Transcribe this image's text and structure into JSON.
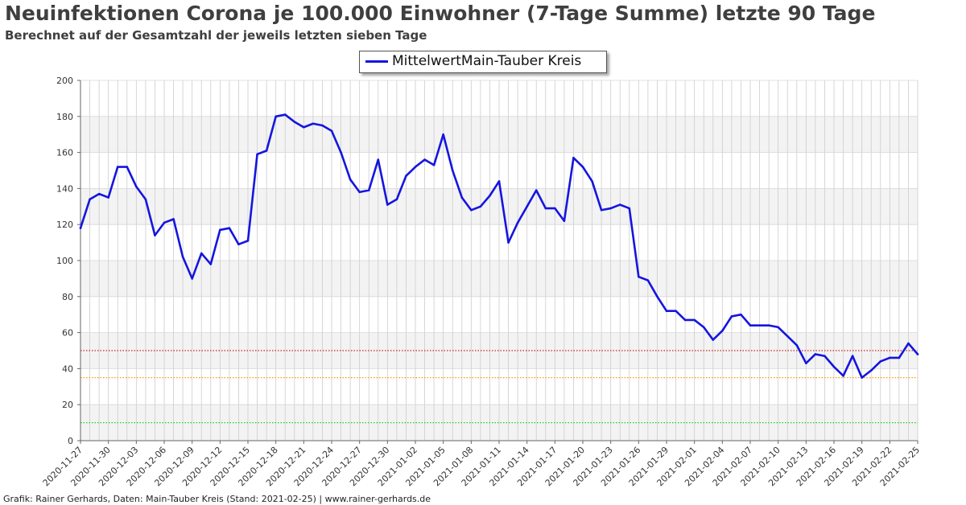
{
  "title": "Neuinfektionen Corona je 100.000 Einwohner (7-Tage Summe) letzte 90 Tage",
  "subtitle": "Berechnet auf der Gesamtzahl der jeweils letzten sieben Tage",
  "footer": "Grafik: Rainer Gerhards, Daten: Main-Tauber Kreis (Stand: 2021-02-25) | www.rainer-gerhards.de",
  "colors": {
    "series": "#1515e0",
    "threshold_50": "#cc2222",
    "threshold_35": "#ff9900",
    "threshold_10": "#22cc22",
    "band": "#f3f3f3",
    "grid": "#cccccc"
  },
  "chart_data": {
    "type": "line",
    "title": "Neuinfektionen Corona je 100.000 Einwohner (7-Tage Summe) letzte 90 Tage",
    "subtitle": "Berechnet auf der Gesamtzahl der jeweils letzten sieben Tage",
    "xlabel": "",
    "ylabel": "",
    "ylim": [
      0,
      200
    ],
    "yticks": [
      0,
      20,
      40,
      60,
      80,
      100,
      120,
      140,
      160,
      180,
      200
    ],
    "x_start": "2020-11-27",
    "x_end": "2021-02-25",
    "xtick_labels": [
      "2020-11-27",
      "2020-11-30",
      "2020-12-03",
      "2020-12-06",
      "2020-12-09",
      "2020-12-12",
      "2020-12-15",
      "2020-12-18",
      "2020-12-21",
      "2020-12-24",
      "2020-12-27",
      "2020-12-30",
      "2021-01-02",
      "2021-01-05",
      "2021-01-08",
      "2021-01-11",
      "2021-01-14",
      "2021-01-17",
      "2021-01-20",
      "2021-01-23",
      "2021-01-26",
      "2021-01-29",
      "2021-02-01",
      "2021-02-04",
      "2021-02-07",
      "2021-02-10",
      "2021-02-13",
      "2021-02-16",
      "2021-02-19",
      "2021-02-22",
      "2021-02-25"
    ],
    "grid": true,
    "legend_position": "top-center",
    "thresholds": [
      50,
      35,
      10
    ],
    "series": [
      {
        "name": "MittelwertMain-Tauber Kreis",
        "values": [
          118,
          134,
          137,
          135,
          152,
          152,
          141,
          134,
          114,
          121,
          123,
          102,
          90,
          104,
          98,
          117,
          118,
          109,
          111,
          159,
          161,
          180,
          181,
          177,
          174,
          176,
          175,
          172,
          160,
          145,
          138,
          139,
          156,
          131,
          134,
          147,
          152,
          156,
          153,
          170,
          150,
          135,
          128,
          130,
          136,
          144,
          110,
          121,
          130,
          139,
          129,
          129,
          122,
          157,
          152,
          144,
          128,
          129,
          131,
          129,
          91,
          89,
          80,
          72,
          72,
          67,
          67,
          63,
          56,
          61,
          69,
          70,
          64,
          64,
          64,
          63,
          58,
          53,
          43,
          48,
          47,
          41,
          36,
          47,
          35,
          39,
          44,
          46,
          46,
          54,
          48
        ]
      }
    ]
  }
}
